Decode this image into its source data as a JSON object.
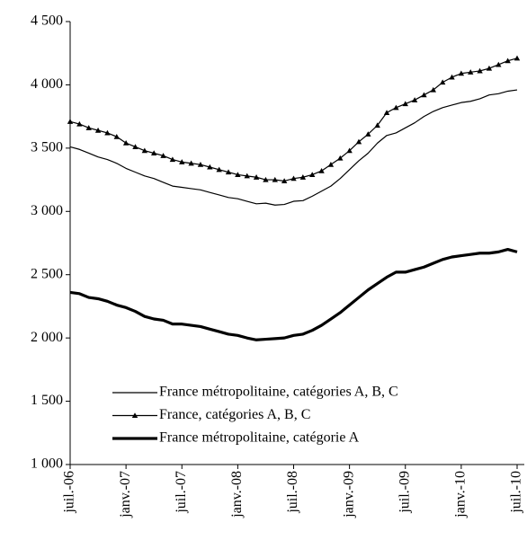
{
  "chart_data": {
    "type": "line",
    "categories": [
      "juil.-06",
      null,
      null,
      null,
      null,
      null,
      "janv.-07",
      null,
      null,
      null,
      null,
      null,
      "juil.-07",
      null,
      null,
      null,
      null,
      null,
      "janv.-08",
      null,
      null,
      null,
      null,
      null,
      "juil.-08",
      null,
      null,
      null,
      null,
      null,
      "janv.-09",
      null,
      null,
      null,
      null,
      null,
      "juil.-09",
      null,
      null,
      null,
      null,
      null,
      "janv.-10",
      null,
      null,
      null,
      null,
      null,
      "juil.-10"
    ],
    "series": [
      {
        "name": "France métropolitaine, catégories A, B, C",
        "color": "#000000",
        "values": [
          3510,
          3490,
          3460,
          3430,
          3410,
          3380,
          3340,
          3310,
          3280,
          3260,
          3230,
          3200,
          3190,
          3180,
          3170,
          3150,
          3130,
          3110,
          3100,
          3080,
          3060,
          3065,
          3050,
          3055,
          3080,
          3085,
          3120,
          3160,
          3200,
          3260,
          3330,
          3400,
          3460,
          3540,
          3600,
          3620,
          3660,
          3700,
          3750,
          3790,
          3820,
          3840,
          3860,
          3870,
          3890,
          3920,
          3930,
          3950,
          3960
        ]
      },
      {
        "name": "France, catégories A, B, C",
        "color": "#000000",
        "marker": "triangle",
        "values": [
          3710,
          3690,
          3660,
          3640,
          3620,
          3590,
          3540,
          3510,
          3480,
          3460,
          3440,
          3410,
          3390,
          3380,
          3370,
          3350,
          3330,
          3310,
          3290,
          3280,
          3270,
          3250,
          3250,
          3240,
          3260,
          3270,
          3290,
          3320,
          3370,
          3420,
          3480,
          3550,
          3610,
          3680,
          3780,
          3820,
          3850,
          3880,
          3920,
          3960,
          4020,
          4060,
          4090,
          4100,
          4110,
          4130,
          4160,
          4190,
          4210
        ]
      },
      {
        "name": "France métropolitaine, catégorie A",
        "color": "#000000",
        "values": [
          2360,
          2350,
          2320,
          2310,
          2290,
          2260,
          2240,
          2210,
          2170,
          2150,
          2140,
          2110,
          2110,
          2100,
          2090,
          2070,
          2050,
          2030,
          2020,
          2000,
          1985,
          1990,
          1995,
          2000,
          2020,
          2030,
          2060,
          2100,
          2150,
          2200,
          2260,
          2320,
          2380,
          2430,
          2480,
          2520,
          2520,
          2540,
          2560,
          2590,
          2620,
          2640,
          2650,
          2660,
          2670,
          2670,
          2680,
          2700,
          2680
        ]
      }
    ],
    "ylim": [
      1000,
      4500
    ],
    "yticks": [
      {
        "value": 1000,
        "label": "1 000"
      },
      {
        "value": 1500,
        "label": "1 500"
      },
      {
        "value": 2000,
        "label": "2 000"
      },
      {
        "value": 2500,
        "label": "2 500"
      },
      {
        "value": 3000,
        "label": "3 000"
      },
      {
        "value": 3500,
        "label": "3 500"
      },
      {
        "value": 4000,
        "label": "4 000"
      },
      {
        "value": 4500,
        "label": "4 500"
      }
    ],
    "grid": false,
    "legend": "lower center"
  }
}
